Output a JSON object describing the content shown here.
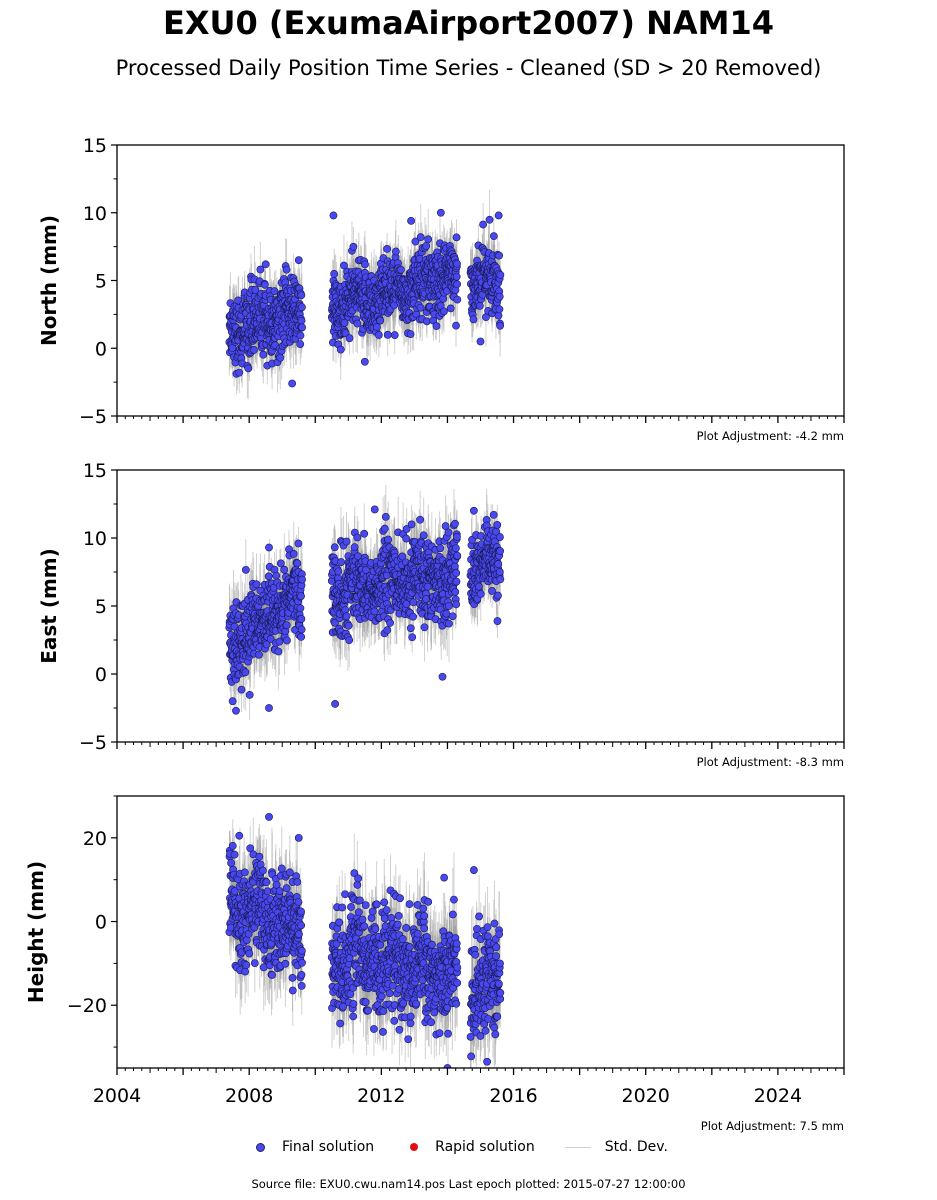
{
  "title": "EXU0 (ExumaAirport2007) NAM14",
  "subtitle": "Processed Daily Position Time Series - Cleaned (SD > 20 Removed)",
  "legend": {
    "final": "Final solution",
    "rapid": "Rapid solution",
    "std": "Std. Dev."
  },
  "source_note": "Source file: EXU0.cwu.nam14.pos  Last epoch plotted: 2015-07-27 12:00:00",
  "colors": {
    "final_fill": "#4848ee",
    "final_edge": "#1a1a55",
    "rapid": "#e01010",
    "std_dev": "#999999"
  },
  "chart_data": [
    {
      "type": "scatter",
      "ylabel": "North (mm)",
      "xlim": [
        2004,
        2026
      ],
      "ylim": [
        -5,
        15
      ],
      "yticks": [
        -5,
        0,
        5,
        10,
        15
      ],
      "note": "Plot Adjustment: -4.2 mm",
      "series": [
        {
          "name": "Final solution",
          "segments": [
            {
              "x_range": [
                2007.4,
                2009.6
              ],
              "trend_start": 1.5,
              "trend_end": 2.5,
              "scatter": 1.3
            },
            {
              "x_range": [
                2010.5,
                2014.3
              ],
              "trend_start": 3.0,
              "trend_end": 5.5,
              "scatter": 1.3
            },
            {
              "x_range": [
                2014.7,
                2015.6
              ],
              "trend_start": 5.0,
              "trend_end": 5.0,
              "scatter": 1.2
            }
          ],
          "outliers": [
            {
              "x": 2010.55,
              "y": 9.8
            },
            {
              "x": 2013.8,
              "y": 10.0
            },
            {
              "x": 2015.55,
              "y": 9.8
            },
            {
              "x": 2009.3,
              "y": -2.6
            },
            {
              "x": 2011.5,
              "y": -1.0
            },
            {
              "x": 2012.9,
              "y": 9.4
            },
            {
              "x": 2008.5,
              "y": 6.2
            },
            {
              "x": 2009.5,
              "y": 6.5
            },
            {
              "x": 2015.0,
              "y": 0.5
            }
          ]
        }
      ]
    },
    {
      "type": "scatter",
      "ylabel": "East (mm)",
      "xlim": [
        2004,
        2026
      ],
      "ylim": [
        -5,
        15
      ],
      "yticks": [
        -5,
        0,
        5,
        10,
        15
      ],
      "note": "Plot Adjustment: -8.3 mm",
      "series": [
        {
          "name": "Final solution",
          "segments": [
            {
              "x_range": [
                2007.4,
                2009.6
              ],
              "trend_start": 2.0,
              "trend_end": 6.0,
              "scatter": 1.5
            },
            {
              "x_range": [
                2010.5,
                2014.3
              ],
              "trend_start": 6.0,
              "trend_end": 7.5,
              "scatter": 1.5
            },
            {
              "x_range": [
                2014.7,
                2015.6
              ],
              "trend_start": 7.5,
              "trend_end": 8.0,
              "scatter": 1.3
            }
          ],
          "outliers": [
            {
              "x": 2007.5,
              "y": -2.0
            },
            {
              "x": 2007.6,
              "y": -2.7
            },
            {
              "x": 2008.6,
              "y": -2.5
            },
            {
              "x": 2010.6,
              "y": -2.2
            },
            {
              "x": 2013.85,
              "y": -0.2
            },
            {
              "x": 2011.8,
              "y": 12.1
            },
            {
              "x": 2014.8,
              "y": 12.0
            },
            {
              "x": 2015.4,
              "y": 11.7
            },
            {
              "x": 2008.6,
              "y": 9.3
            }
          ]
        }
      ]
    },
    {
      "type": "scatter",
      "ylabel": "Height (mm)",
      "xlabel": "",
      "xlim": [
        2004,
        2026
      ],
      "ylim": [
        -35,
        30
      ],
      "yticks": [
        -20,
        0,
        20
      ],
      "xticks": [
        2004,
        2008,
        2012,
        2016,
        2020,
        2024
      ],
      "note": "Plot Adjustment: 7.5 mm",
      "series": [
        {
          "name": "Final solution",
          "segments": [
            {
              "x_range": [
                2007.4,
                2009.6
              ],
              "trend_start": 5.0,
              "trend_end": -3.0,
              "scatter": 6.0
            },
            {
              "x_range": [
                2010.5,
                2014.3
              ],
              "trend_start": -8.0,
              "trend_end": -12.0,
              "scatter": 6.0
            },
            {
              "x_range": [
                2014.7,
                2015.6
              ],
              "trend_start": -15.0,
              "trend_end": -15.0,
              "scatter": 6.0
            }
          ],
          "outliers": [
            {
              "x": 2008.6,
              "y": 25.0
            },
            {
              "x": 2007.7,
              "y": 20.5
            },
            {
              "x": 2009.5,
              "y": 20.0
            },
            {
              "x": 2014.8,
              "y": 12.3
            },
            {
              "x": 2014.0,
              "y": -35.0
            },
            {
              "x": 2015.2,
              "y": -33.5
            },
            {
              "x": 2013.9,
              "y": 10.5
            },
            {
              "x": 2011.3,
              "y": 10.3
            }
          ]
        }
      ]
    }
  ]
}
